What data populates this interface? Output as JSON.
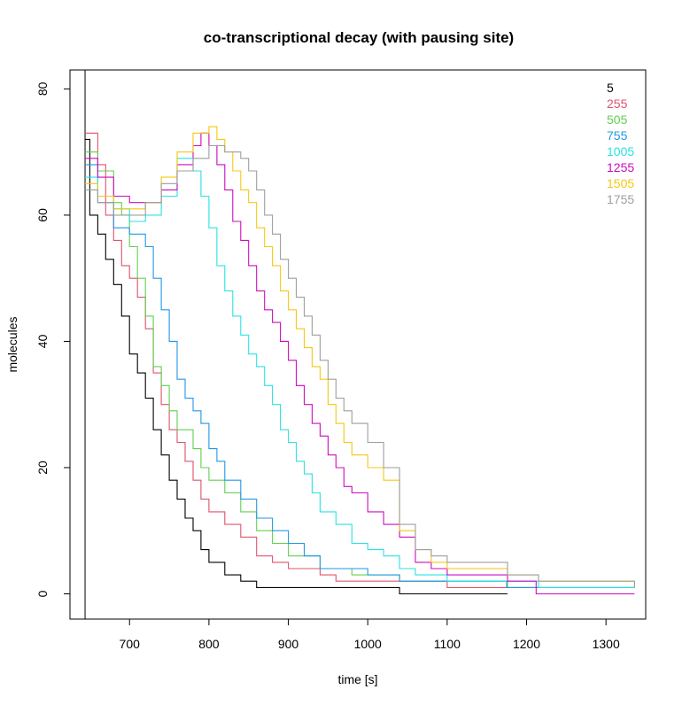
{
  "chart_data": {
    "type": "line",
    "title": "co-transcriptional decay (with pausing site)",
    "xlabel": "time [s]",
    "ylabel": "molecules",
    "xlim": [
      625,
      1350
    ],
    "ylim": [
      -4,
      83
    ],
    "xticks": [
      700,
      800,
      900,
      1000,
      1100,
      1200,
      1300
    ],
    "yticks": [
      0,
      20,
      40,
      60,
      80
    ],
    "vline_x": 644,
    "legend_position": "top-right",
    "step": true,
    "series": [
      {
        "name": "5",
        "color": "#000000",
        "points": [
          [
            644,
            72
          ],
          [
            650,
            60
          ],
          [
            660,
            57
          ],
          [
            670,
            53
          ],
          [
            680,
            49
          ],
          [
            690,
            44
          ],
          [
            700,
            38
          ],
          [
            710,
            35
          ],
          [
            720,
            31
          ],
          [
            730,
            26
          ],
          [
            740,
            22
          ],
          [
            750,
            18
          ],
          [
            760,
            15
          ],
          [
            770,
            12
          ],
          [
            780,
            10
          ],
          [
            790,
            7
          ],
          [
            800,
            5
          ],
          [
            820,
            3
          ],
          [
            840,
            2
          ],
          [
            860,
            1
          ],
          [
            880,
            1
          ],
          [
            900,
            1
          ],
          [
            960,
            1
          ],
          [
            1040,
            0
          ],
          [
            1176,
            0
          ]
        ]
      },
      {
        "name": "255",
        "color": "#df536b",
        "points": [
          [
            644,
            73
          ],
          [
            660,
            68
          ],
          [
            670,
            60
          ],
          [
            680,
            56
          ],
          [
            690,
            52
          ],
          [
            700,
            50
          ],
          [
            710,
            47
          ],
          [
            720,
            42
          ],
          [
            730,
            35
          ],
          [
            740,
            30
          ],
          [
            750,
            26
          ],
          [
            760,
            24
          ],
          [
            770,
            21
          ],
          [
            780,
            18
          ],
          [
            790,
            15
          ],
          [
            800,
            13
          ],
          [
            820,
            11
          ],
          [
            840,
            9
          ],
          [
            860,
            6
          ],
          [
            880,
            5
          ],
          [
            900,
            4
          ],
          [
            940,
            3
          ],
          [
            960,
            2
          ],
          [
            1000,
            2
          ],
          [
            1100,
            1
          ],
          [
            1336,
            1
          ]
        ]
      },
      {
        "name": "505",
        "color": "#61d04f",
        "points": [
          [
            644,
            70
          ],
          [
            660,
            67
          ],
          [
            680,
            62
          ],
          [
            690,
            60
          ],
          [
            700,
            55
          ],
          [
            710,
            50
          ],
          [
            720,
            44
          ],
          [
            730,
            36
          ],
          [
            740,
            33
          ],
          [
            750,
            29
          ],
          [
            760,
            26
          ],
          [
            780,
            23
          ],
          [
            790,
            20
          ],
          [
            800,
            18
          ],
          [
            820,
            16
          ],
          [
            840,
            13
          ],
          [
            860,
            10
          ],
          [
            880,
            8
          ],
          [
            900,
            6
          ],
          [
            940,
            4
          ],
          [
            980,
            3
          ],
          [
            1040,
            2
          ],
          [
            1176,
            1
          ],
          [
            1336,
            1
          ]
        ]
      },
      {
        "name": "755",
        "color": "#2297e6",
        "points": [
          [
            644,
            68
          ],
          [
            660,
            62
          ],
          [
            680,
            58
          ],
          [
            700,
            57
          ],
          [
            720,
            55
          ],
          [
            730,
            50
          ],
          [
            740,
            45
          ],
          [
            750,
            40
          ],
          [
            760,
            34
          ],
          [
            770,
            31
          ],
          [
            780,
            29
          ],
          [
            790,
            27
          ],
          [
            800,
            23
          ],
          [
            810,
            21
          ],
          [
            820,
            18
          ],
          [
            840,
            15
          ],
          [
            860,
            12
          ],
          [
            880,
            10
          ],
          [
            900,
            8
          ],
          [
            920,
            6
          ],
          [
            940,
            4
          ],
          [
            960,
            4
          ],
          [
            1000,
            3
          ],
          [
            1040,
            2
          ],
          [
            1100,
            2
          ],
          [
            1175,
            1
          ],
          [
            1336,
            1
          ]
        ]
      },
      {
        "name": "1005",
        "color": "#28e2e5",
        "points": [
          [
            644,
            66
          ],
          [
            660,
            63
          ],
          [
            680,
            61
          ],
          [
            700,
            59
          ],
          [
            720,
            60
          ],
          [
            740,
            63
          ],
          [
            760,
            69
          ],
          [
            780,
            67
          ],
          [
            790,
            63
          ],
          [
            800,
            58
          ],
          [
            810,
            52
          ],
          [
            820,
            48
          ],
          [
            830,
            44
          ],
          [
            840,
            41
          ],
          [
            850,
            38
          ],
          [
            860,
            36
          ],
          [
            870,
            33
          ],
          [
            880,
            30
          ],
          [
            890,
            26
          ],
          [
            900,
            24
          ],
          [
            910,
            21
          ],
          [
            920,
            19
          ],
          [
            930,
            16
          ],
          [
            940,
            13
          ],
          [
            960,
            11
          ],
          [
            980,
            8
          ],
          [
            1000,
            7
          ],
          [
            1020,
            6
          ],
          [
            1040,
            4
          ],
          [
            1060,
            3
          ],
          [
            1100,
            2
          ],
          [
            1176,
            2
          ],
          [
            1215,
            1
          ],
          [
            1336,
            1
          ]
        ]
      },
      {
        "name": "1255",
        "color": "#cd0bbc",
        "points": [
          [
            644,
            69
          ],
          [
            660,
            66
          ],
          [
            680,
            63
          ],
          [
            700,
            62
          ],
          [
            720,
            62
          ],
          [
            740,
            64
          ],
          [
            760,
            68
          ],
          [
            780,
            71
          ],
          [
            790,
            73
          ],
          [
            800,
            71
          ],
          [
            810,
            68
          ],
          [
            820,
            64
          ],
          [
            830,
            59
          ],
          [
            840,
            56
          ],
          [
            850,
            52
          ],
          [
            860,
            48
          ],
          [
            870,
            45
          ],
          [
            880,
            43
          ],
          [
            890,
            40
          ],
          [
            900,
            37
          ],
          [
            910,
            33
          ],
          [
            920,
            30
          ],
          [
            930,
            27
          ],
          [
            940,
            25
          ],
          [
            950,
            22
          ],
          [
            960,
            20
          ],
          [
            970,
            17
          ],
          [
            980,
            16
          ],
          [
            1000,
            13
          ],
          [
            1020,
            11
          ],
          [
            1040,
            9
          ],
          [
            1060,
            5
          ],
          [
            1080,
            4
          ],
          [
            1100,
            3
          ],
          [
            1176,
            2
          ],
          [
            1212,
            0
          ],
          [
            1336,
            0
          ]
        ]
      },
      {
        "name": "1505",
        "color": "#f5c710",
        "points": [
          [
            644,
            65
          ],
          [
            660,
            63
          ],
          [
            680,
            61
          ],
          [
            700,
            61
          ],
          [
            720,
            62
          ],
          [
            740,
            66
          ],
          [
            760,
            70
          ],
          [
            780,
            73
          ],
          [
            800,
            74
          ],
          [
            810,
            72
          ],
          [
            820,
            70
          ],
          [
            830,
            67
          ],
          [
            840,
            64
          ],
          [
            850,
            62
          ],
          [
            860,
            58
          ],
          [
            870,
            55
          ],
          [
            880,
            52
          ],
          [
            890,
            48
          ],
          [
            900,
            45
          ],
          [
            910,
            42
          ],
          [
            920,
            39
          ],
          [
            930,
            36
          ],
          [
            940,
            34
          ],
          [
            950,
            30
          ],
          [
            960,
            27
          ],
          [
            970,
            24
          ],
          [
            980,
            22
          ],
          [
            1000,
            20
          ],
          [
            1020,
            18
          ],
          [
            1040,
            10
          ],
          [
            1060,
            7
          ],
          [
            1080,
            5
          ],
          [
            1100,
            4
          ],
          [
            1176,
            3
          ],
          [
            1215,
            2
          ],
          [
            1336,
            1
          ]
        ]
      },
      {
        "name": "1755",
        "color": "#9e9e9e",
        "points": [
          [
            644,
            64
          ],
          [
            660,
            62
          ],
          [
            680,
            60
          ],
          [
            700,
            60
          ],
          [
            720,
            62
          ],
          [
            740,
            65
          ],
          [
            760,
            67
          ],
          [
            780,
            69
          ],
          [
            800,
            71
          ],
          [
            820,
            70
          ],
          [
            840,
            69
          ],
          [
            850,
            67
          ],
          [
            860,
            64
          ],
          [
            870,
            60
          ],
          [
            880,
            57
          ],
          [
            890,
            53
          ],
          [
            900,
            50
          ],
          [
            910,
            47
          ],
          [
            920,
            44
          ],
          [
            930,
            41
          ],
          [
            940,
            37
          ],
          [
            950,
            34
          ],
          [
            960,
            31
          ],
          [
            970,
            29
          ],
          [
            980,
            27
          ],
          [
            1000,
            24
          ],
          [
            1020,
            20
          ],
          [
            1040,
            11
          ],
          [
            1060,
            7
          ],
          [
            1080,
            6
          ],
          [
            1100,
            5
          ],
          [
            1176,
            3
          ],
          [
            1215,
            2
          ],
          [
            1336,
            1
          ]
        ]
      }
    ]
  }
}
